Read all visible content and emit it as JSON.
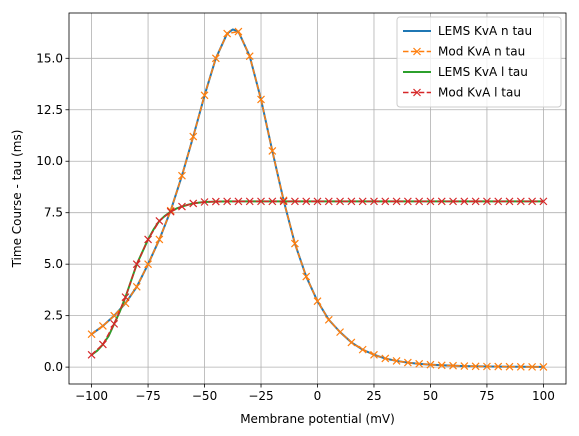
{
  "chart_data": {
    "type": "line",
    "xlabel": "Membrane potential (mV)",
    "ylabel": "Time Course - tau (ms)",
    "xlim": [
      -110,
      110
    ],
    "ylim": [
      -0.82,
      17.2
    ],
    "xticks": [
      -100,
      -75,
      -50,
      -25,
      0,
      25,
      50,
      75,
      100
    ],
    "xtick_labels": [
      "−100",
      "−75",
      "−50",
      "−25",
      "0",
      "25",
      "50",
      "75",
      "100"
    ],
    "yticks": [
      0,
      2.5,
      5,
      7.5,
      10,
      12.5,
      15
    ],
    "ytick_labels": [
      "0.0",
      "2.5",
      "5.0",
      "7.5",
      "10.0",
      "12.5",
      "15.0"
    ],
    "grid": true,
    "legend_position": "top-right",
    "series": [
      {
        "name": "LEMS KvA n tau",
        "style": "solid",
        "color": "#1f77b4",
        "x": [
          -100,
          -95,
          -90,
          -85,
          -80,
          -75,
          -70,
          -65,
          -60,
          -55,
          -50,
          -45,
          -40,
          -37.5,
          -35,
          -30,
          -25,
          -20,
          -15,
          -10,
          -5,
          0,
          5,
          10,
          15,
          20,
          25,
          30,
          35,
          40,
          45,
          50,
          55,
          60,
          65,
          70,
          75,
          80,
          85,
          90,
          95,
          100
        ],
        "y": [
          1.6,
          2.0,
          2.5,
          3.1,
          3.9,
          5.0,
          6.2,
          7.6,
          9.3,
          11.2,
          13.2,
          15.0,
          16.2,
          16.4,
          16.3,
          15.1,
          13.0,
          10.5,
          8.1,
          6.0,
          4.4,
          3.2,
          2.3,
          1.7,
          1.2,
          0.85,
          0.6,
          0.42,
          0.3,
          0.22,
          0.16,
          0.12,
          0.09,
          0.07,
          0.05,
          0.04,
          0.03,
          0.025,
          0.02,
          0.015,
          0.012,
          0.01
        ]
      },
      {
        "name": "Mod KvA n tau",
        "style": "dashed-x",
        "color": "#ff7f0e",
        "x": [
          -100,
          -95,
          -90,
          -85,
          -80,
          -75,
          -70,
          -65,
          -60,
          -55,
          -50,
          -45,
          -40,
          -35,
          -30,
          -25,
          -20,
          -15,
          -10,
          -5,
          0,
          5,
          10,
          15,
          20,
          25,
          30,
          35,
          40,
          45,
          50,
          55,
          60,
          65,
          70,
          75,
          80,
          85,
          90,
          95,
          100
        ],
        "y": [
          1.6,
          2.0,
          2.5,
          3.1,
          3.9,
          5.0,
          6.2,
          7.6,
          9.3,
          11.2,
          13.2,
          15.0,
          16.2,
          16.3,
          15.1,
          13.0,
          10.5,
          8.1,
          6.0,
          4.4,
          3.2,
          2.3,
          1.7,
          1.2,
          0.85,
          0.6,
          0.42,
          0.3,
          0.22,
          0.16,
          0.12,
          0.09,
          0.07,
          0.05,
          0.04,
          0.03,
          0.025,
          0.02,
          0.015,
          0.012,
          0.01
        ]
      },
      {
        "name": "LEMS KvA l tau",
        "style": "solid",
        "color": "#2ca02c",
        "x": [
          -100,
          -97.5,
          -95,
          -92.5,
          -90,
          -87.5,
          -85,
          -82.5,
          -80,
          -77.5,
          -75,
          -72.5,
          -70,
          -67.5,
          -65,
          -62.5,
          -60,
          -57.5,
          -55,
          -52.5,
          -50,
          -45,
          -40,
          -35,
          -30,
          -25,
          -20,
          -15,
          -10,
          -5,
          0,
          10,
          20,
          30,
          40,
          50,
          60,
          70,
          80,
          90,
          100
        ],
        "y": [
          0.6,
          0.8,
          1.1,
          1.5,
          2.1,
          2.7,
          3.4,
          4.2,
          5.0,
          5.6,
          6.2,
          6.7,
          7.1,
          7.35,
          7.55,
          7.7,
          7.8,
          7.88,
          7.95,
          7.99,
          8.02,
          8.04,
          8.05,
          8.05,
          8.05,
          8.05,
          8.05,
          8.05,
          8.05,
          8.05,
          8.05,
          8.05,
          8.05,
          8.05,
          8.05,
          8.05,
          8.05,
          8.05,
          8.05,
          8.05,
          8.05
        ]
      },
      {
        "name": "Mod KvA l tau",
        "style": "dashed-x",
        "color": "#d62728",
        "x": [
          -100,
          -95,
          -90,
          -85,
          -80,
          -75,
          -70,
          -65,
          -60,
          -55,
          -50,
          -45,
          -40,
          -35,
          -30,
          -25,
          -20,
          -15,
          -10,
          -5,
          0,
          5,
          10,
          15,
          20,
          25,
          30,
          35,
          40,
          45,
          50,
          55,
          60,
          65,
          70,
          75,
          80,
          85,
          90,
          95,
          100
        ],
        "y": [
          0.6,
          1.1,
          2.1,
          3.4,
          5.0,
          6.2,
          7.1,
          7.55,
          7.8,
          7.95,
          8.02,
          8.04,
          8.05,
          8.05,
          8.05,
          8.05,
          8.05,
          8.05,
          8.05,
          8.05,
          8.05,
          8.05,
          8.05,
          8.05,
          8.05,
          8.05,
          8.05,
          8.05,
          8.05,
          8.05,
          8.05,
          8.05,
          8.05,
          8.05,
          8.05,
          8.05,
          8.05,
          8.05,
          8.05,
          8.05,
          8.05
        ]
      }
    ]
  }
}
